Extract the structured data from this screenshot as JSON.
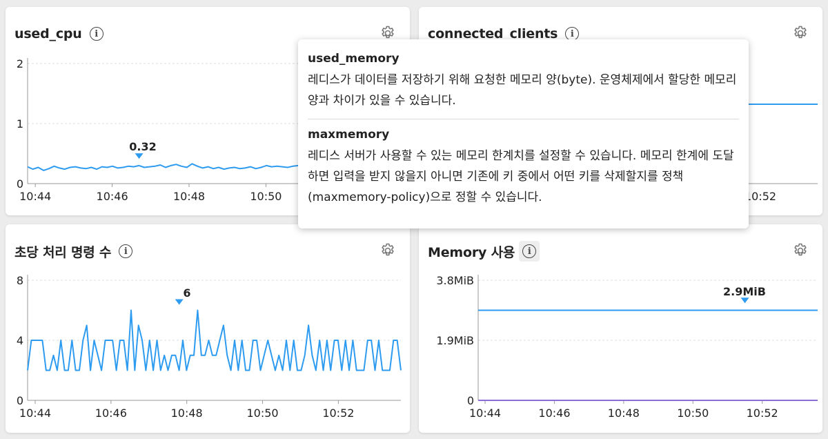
{
  "colors": {
    "line": "#2d9bf0",
    "secondary_line": "#8a6dd9",
    "grid": "#dcdcdc"
  },
  "cards": {
    "cpu": {
      "title": "used_cpu",
      "marker_label": "0.32"
    },
    "clients": {
      "title": "connected_clients"
    },
    "commands": {
      "title": "초당 처리 명령 수",
      "marker_label": "6"
    },
    "memory": {
      "title": "Memory 사용",
      "marker_label": "2.9MiB"
    }
  },
  "icons": {
    "info": "info-icon",
    "settings": "gear-icon",
    "marker": "triangle-down-icon"
  },
  "tooltip": {
    "sections": [
      {
        "title": "used_memory",
        "body": "레디스가 데이터를 저장하기 위해 요청한 메모리 양(byte). 운영체제에서 할당한 메모리 양과 차이가 있을 수 있습니다."
      },
      {
        "title": "maxmemory",
        "body": "레디스 서버가 사용할 수 있는 메모리 한계치를 설정할 수 있습니다. 메모리 한계에 도달하면 입력을 받지 않을지 아니면 기존에 키 중에서 어떤 키를 삭제할지를 정책(maxmemory-policy)으로 정할 수 있습니다."
      }
    ]
  },
  "chart_data": [
    {
      "type": "line",
      "title": "used_cpu",
      "x_ticks": [
        "10:44",
        "10:46",
        "10:48",
        "10:50"
      ],
      "y_ticks": [
        "0",
        "1",
        "2"
      ],
      "ylim": [
        0,
        2
      ],
      "x_range_minutes": [
        43.8,
        53.6
      ],
      "series": [
        {
          "values": [
            0.28,
            0.24,
            0.27,
            0.22,
            0.25,
            0.29,
            0.26,
            0.24,
            0.27,
            0.28,
            0.26,
            0.25,
            0.27,
            0.24,
            0.28,
            0.27,
            0.29,
            0.26,
            0.27,
            0.29,
            0.28,
            0.3,
            0.27,
            0.28,
            0.29,
            0.31,
            0.27,
            0.3,
            0.32,
            0.29,
            0.27,
            0.33,
            0.29,
            0.26,
            0.28,
            0.25,
            0.27,
            0.24,
            0.26,
            0.27,
            0.25,
            0.26,
            0.28,
            0.25,
            0.27,
            0.3,
            0.28,
            0.29,
            0.28,
            0.27,
            0.29,
            0.3,
            0.28,
            0.29,
            0.28,
            0.25,
            0.27,
            0.25,
            0.24,
            0.22,
            0.23,
            0.25,
            0.24,
            0.25,
            0.23,
            0.24,
            0.25,
            0.26,
            0.24,
            0.25,
            0.24,
            0.23
          ]
        }
      ],
      "marker": {
        "x_minutes": 46.7,
        "value": 0.32
      }
    },
    {
      "type": "line",
      "title": "connected_clients",
      "x_ticks": [
        "10:52"
      ],
      "series": [
        {
          "values": [
            1,
            1
          ]
        }
      ]
    },
    {
      "type": "line",
      "title": "초당 처리 명령 수",
      "x_ticks": [
        "10:44",
        "10:46",
        "10:48",
        "10:50",
        "10:52"
      ],
      "y_ticks": [
        "0",
        "4",
        "8"
      ],
      "ylim": [
        0,
        8
      ],
      "x_range_minutes": [
        43.8,
        53.65
      ],
      "series": [
        {
          "values": [
            2,
            4,
            4,
            4,
            4,
            2,
            2,
            3,
            2,
            4,
            2,
            2,
            4,
            2,
            2,
            4,
            5,
            2,
            4,
            3,
            2,
            4,
            4,
            4,
            2,
            4,
            4,
            2,
            6,
            2,
            5,
            4,
            2,
            4,
            2,
            4,
            2,
            3,
            2,
            3,
            3,
            2,
            4,
            2,
            3,
            3,
            6,
            3,
            3,
            4,
            3,
            3,
            4,
            5,
            3,
            2,
            4,
            2,
            4,
            2,
            2,
            4,
            4,
            2,
            3,
            4,
            3,
            2,
            3,
            2,
            4,
            2,
            4,
            2,
            2,
            3,
            5,
            3,
            2,
            4,
            2,
            4,
            2,
            4,
            4,
            2,
            4,
            2,
            4,
            2,
            2,
            2,
            4,
            4,
            2,
            4,
            2,
            2,
            2,
            4,
            4,
            2
          ]
        }
      ],
      "marker": {
        "x_minutes": 47.8,
        "value": 6
      }
    },
    {
      "type": "line",
      "title": "Memory 사용",
      "x_ticks": [
        "10:44",
        "10:46",
        "10:48",
        "10:50",
        "10:52"
      ],
      "y_ticks": [
        "0",
        "1.9MiB",
        "3.8MiB"
      ],
      "ylim": [
        0,
        3.8
      ],
      "x_range_minutes": [
        43.8,
        53.6
      ],
      "series": [
        {
          "name": "used_memory",
          "values": [
            2.85,
            2.85,
            2.85,
            2.85,
            2.85
          ]
        },
        {
          "name": "maxmemory",
          "values": [
            0,
            0
          ]
        }
      ],
      "marker": {
        "x_minutes": 51.5,
        "value": 2.9
      }
    }
  ]
}
